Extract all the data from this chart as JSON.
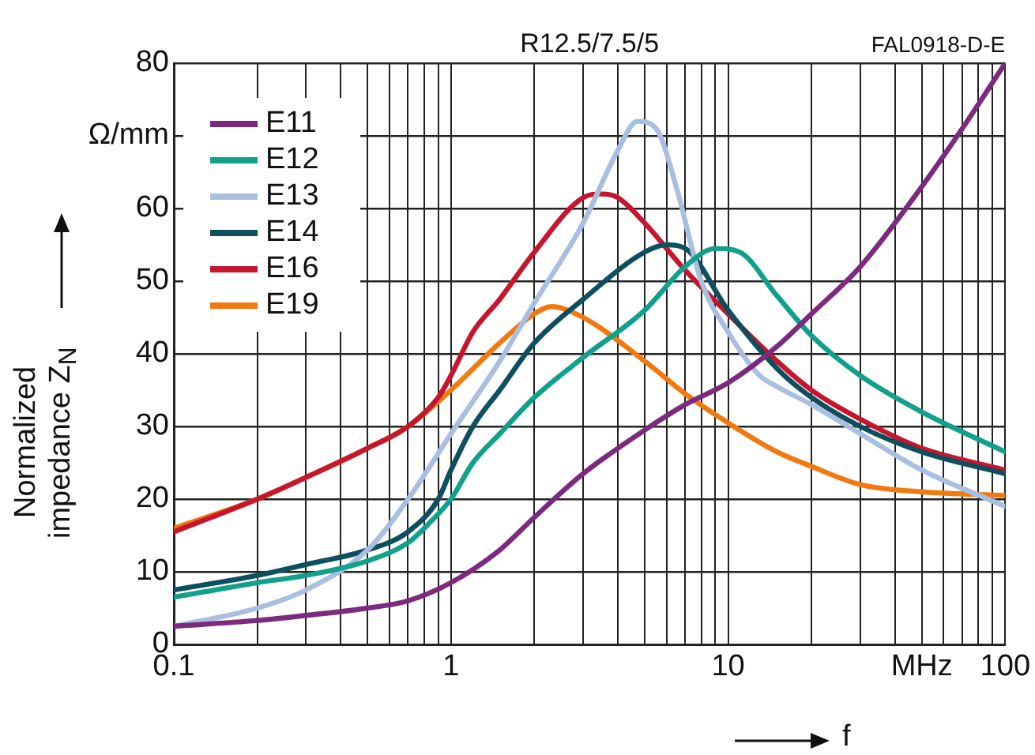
{
  "chart_data": {
    "type": "line",
    "title": "R12.5/7.5/5",
    "xlabel": "f",
    "ylabel": "Normalized impedance Z$_{N}$",
    "annotations": [
      "FAL0918-D-E"
    ],
    "log": "x",
    "grid": true,
    "legend": "top left",
    "marker": "none",
    "line_style": "solid",
    "xlim": [
      0.1,
      100
    ],
    "ylim": [
      0,
      80
    ],
    "xticks": [
      0.1,
      {
        "value": 0.2,
        "label": null
      },
      {
        "value": 0.3,
        "label": null
      },
      {
        "value": 0.4,
        "label": null
      },
      {
        "value": 0.5,
        "label": null
      },
      {
        "value": 0.6,
        "label": null
      },
      {
        "value": 0.7,
        "label": null
      },
      {
        "value": 0.8,
        "label": null
      },
      {
        "value": 0.9,
        "label": null
      },
      1,
      {
        "value": 2,
        "label": null
      },
      {
        "value": 3,
        "label": null
      },
      {
        "value": 4,
        "label": null
      },
      {
        "value": 5,
        "label": null
      },
      {
        "value": 6,
        "label": null
      },
      {
        "value": 7,
        "label": null
      },
      {
        "value": 8,
        "label": null
      },
      {
        "value": 9,
        "label": null
      },
      10,
      {
        "value": 20,
        "label": null
      },
      {
        "value": 30,
        "label": null
      },
      {
        "value": 40,
        "label": null
      },
      {
        "value": 50,
        "label": "MHz"
      },
      {
        "value": 60,
        "label": null
      },
      {
        "value": 70,
        "label": null
      },
      {
        "value": 80,
        "label": null
      },
      {
        "value": 90,
        "label": null
      },
      100
    ],
    "yticks": [
      0,
      10,
      20,
      30,
      40,
      50,
      60,
      {
        "value": 70,
        "label": "Ω/mm"
      },
      80
    ],
    "series": [
      {
        "name": "E11",
        "color": "#7b2a7d",
        "x": [
          0.1,
          0.2,
          0.3,
          0.5,
          0.7,
          1,
          1.5,
          2,
          3,
          5,
          7,
          10,
          15,
          20,
          30,
          50,
          70,
          100
        ],
        "values": [
          2.5,
          3.3,
          4,
          5,
          6,
          8.5,
          13,
          17.5,
          23.5,
          29.5,
          33,
          36,
          41,
          45.5,
          52,
          63,
          71,
          80
        ]
      },
      {
        "name": "E12",
        "color": "#11a08c",
        "x": [
          0.1,
          0.2,
          0.3,
          0.5,
          0.7,
          0.85,
          1,
          1.2,
          1.5,
          2,
          3,
          5,
          7,
          9,
          11,
          15,
          20,
          30,
          50,
          100
        ],
        "values": [
          6.5,
          8.5,
          9.5,
          11.5,
          14,
          17,
          20,
          25,
          29,
          34,
          39.5,
          46,
          52,
          54.5,
          54,
          48,
          42.5,
          37,
          32,
          26.5
        ]
      },
      {
        "name": "E13",
        "color": "#a8bfdf",
        "x": [
          0.1,
          0.2,
          0.3,
          0.5,
          0.7,
          1,
          1.5,
          2,
          3,
          4,
          4.7,
          5.5,
          6.5,
          8,
          10,
          13,
          15,
          20,
          30,
          50,
          100
        ],
        "values": [
          2.5,
          5,
          7.5,
          13,
          20,
          29,
          39,
          47,
          58,
          68,
          72,
          71,
          63,
          50,
          43,
          37,
          35.5,
          33,
          29,
          24,
          19
        ]
      },
      {
        "name": "E14",
        "color": "#0e4f5f",
        "x": [
          0.1,
          0.2,
          0.3,
          0.5,
          0.7,
          0.9,
          1,
          1.2,
          1.5,
          2,
          3,
          5,
          6,
          7,
          10,
          15,
          20,
          30,
          50,
          100
        ],
        "values": [
          7.5,
          9.5,
          11,
          13,
          15.5,
          20,
          24,
          30,
          35,
          41.5,
          47.5,
          54,
          55,
          54.5,
          46,
          38,
          34,
          30,
          26.5,
          23.5
        ]
      },
      {
        "name": "E16",
        "color": "#c5162e",
        "x": [
          0.1,
          0.2,
          0.3,
          0.5,
          0.7,
          0.9,
          1,
          1.2,
          1.5,
          2,
          3,
          3.5,
          4,
          5,
          7,
          10,
          15,
          20,
          30,
          50,
          100
        ],
        "values": [
          15.5,
          20,
          23,
          27,
          30,
          34,
          37,
          43,
          47.5,
          54,
          61.5,
          62,
          61.5,
          58,
          51.5,
          45.5,
          39,
          35,
          31,
          27,
          24
        ]
      },
      {
        "name": "E19",
        "color": "#f07a10",
        "x": [
          0.1,
          0.2,
          0.3,
          0.5,
          0.7,
          1,
          1.5,
          2,
          2.3,
          3,
          5,
          7,
          10,
          15,
          20,
          30,
          50,
          100
        ],
        "values": [
          16,
          20,
          23,
          27,
          30,
          35,
          41.5,
          45.5,
          46.5,
          45,
          39,
          34.5,
          30.5,
          26.5,
          24.5,
          22,
          21,
          20.5
        ]
      }
    ]
  }
}
